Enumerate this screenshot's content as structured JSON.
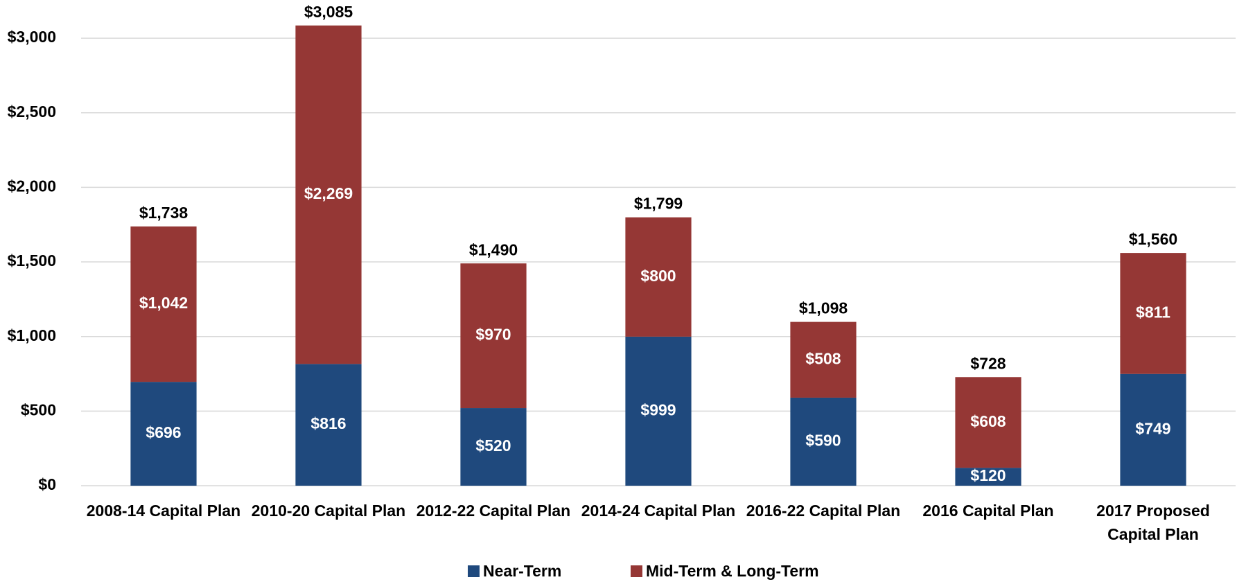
{
  "chart_data": {
    "type": "stacked_bar",
    "categories": [
      "2008-14 Capital Plan",
      "2010-20 Capital Plan",
      "2012-22 Capital Plan",
      "2014-24 Capital Plan",
      "2016-22 Capital Plan",
      "2016 Capital Plan",
      "2017 Proposed Capital Plan"
    ],
    "series": [
      {
        "name": "Near-Term",
        "color": "#1f497d",
        "values": [
          696,
          816,
          520,
          999,
          590,
          120,
          749
        ],
        "value_labels": [
          "$696",
          "$816",
          "$520",
          "$999",
          "$590",
          "$120",
          "$749"
        ]
      },
      {
        "name": "Mid-Term & Long-Term",
        "color": "#953735",
        "values": [
          1042,
          2269,
          970,
          800,
          508,
          608,
          811
        ],
        "value_labels": [
          "$1,042",
          "$2,269",
          "$970",
          "$800",
          "$508",
          "$608",
          "$811"
        ]
      }
    ],
    "totals": [
      1738,
      3085,
      1490,
      1799,
      1098,
      728,
      1560
    ],
    "total_labels": [
      "$1,738",
      "$3,085",
      "$1,490",
      "$1,799",
      "$1,098",
      "$728",
      "$1,560"
    ],
    "ylim": [
      0,
      3200
    ],
    "yticks": [
      {
        "value": 0,
        "label": "$0"
      },
      {
        "value": 500,
        "label": "$500"
      },
      {
        "value": 1000,
        "label": "$1,000"
      },
      {
        "value": 1500,
        "label": "$1,500"
      },
      {
        "value": 2000,
        "label": "$2,000"
      },
      {
        "value": 2500,
        "label": "$2,500"
      },
      {
        "value": 3000,
        "label": "$3,000"
      }
    ],
    "grid": true,
    "legend": "bottom"
  }
}
